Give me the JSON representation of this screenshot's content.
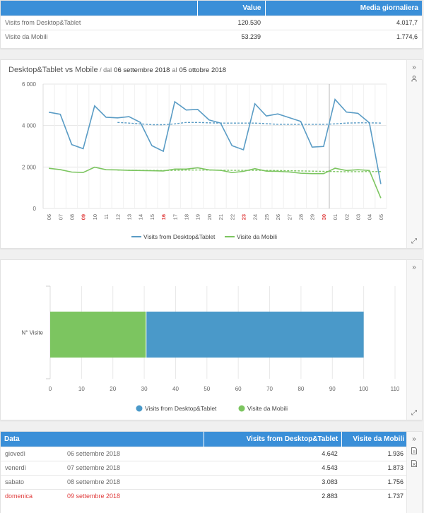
{
  "summary": {
    "headers": [
      "",
      "Value",
      "Media giornaliera"
    ],
    "rows": [
      {
        "label": "Visits from Desktop&Tablet",
        "value": "120.530",
        "avg": "4.017,7"
      },
      {
        "label": "Visite da Mobili",
        "value": "53.239",
        "avg": "1.774,6"
      }
    ]
  },
  "line_panel": {
    "title_main": "Desktop&Tablet vs Mobile",
    "title_sep": " / ",
    "title_dal": "dal",
    "title_start": "06 settembre 2018",
    "title_al": "al",
    "title_end": "05 ottobre 2018",
    "icons": [
      "chevron-right-icon",
      "person-icon",
      "expand-icon"
    ]
  },
  "bar_panel": {
    "icons": [
      "chevron-right-icon",
      "expand-icon"
    ]
  },
  "chart_data": [
    {
      "type": "line",
      "x": [
        "06",
        "07",
        "08",
        "09",
        "10",
        "11",
        "12",
        "13",
        "14",
        "15",
        "16",
        "17",
        "18",
        "19",
        "20",
        "21",
        "22",
        "23",
        "24",
        "25",
        "26",
        "27",
        "28",
        "29",
        "30",
        "01",
        "02",
        "03",
        "04",
        "05"
      ],
      "x_highlight": [
        "09",
        "16",
        "23",
        "30"
      ],
      "series": [
        {
          "name": "Visits from Desktop&Tablet",
          "color": "#5a9cc5",
          "values": [
            4642,
            4543,
            3083,
            2883,
            4950,
            4400,
            4370,
            4430,
            4150,
            3030,
            2760,
            5150,
            4750,
            4780,
            4270,
            4120,
            3030,
            2830,
            5050,
            4460,
            4560,
            4380,
            4200,
            2960,
            2990,
            5260,
            4650,
            4590,
            4130,
            1180
          ]
        },
        {
          "name": "Visite da Mobili",
          "color": "#7cc560",
          "values": [
            1936,
            1873,
            1756,
            1737,
            1990,
            1870,
            1860,
            1840,
            1830,
            1820,
            1810,
            1900,
            1900,
            1960,
            1860,
            1840,
            1730,
            1790,
            1920,
            1800,
            1790,
            1760,
            1700,
            1680,
            1680,
            1940,
            1830,
            1870,
            1830,
            500
          ]
        }
      ],
      "trend": [
        {
          "series": "Visits from Desktop&Tablet",
          "from_index": 6,
          "values": [
            4150,
            4120,
            4080,
            4040,
            4040,
            4080,
            4150,
            4150,
            4130,
            4120,
            4120,
            4120,
            4120,
            4090,
            4060,
            4060,
            4060,
            4060,
            4060,
            4080,
            4120,
            4130,
            4130,
            4120
          ]
        },
        {
          "series": "Visite da Mobili",
          "from_index": 6,
          "values": [
            1850,
            1845,
            1840,
            1835,
            1830,
            1840,
            1850,
            1855,
            1850,
            1845,
            1840,
            1840,
            1840,
            1835,
            1830,
            1820,
            1810,
            1800,
            1790,
            1780,
            1770,
            1775,
            1780,
            1780
          ]
        }
      ],
      "ylim": [
        0,
        6000
      ],
      "yticks": [
        "0",
        "2 000",
        "4 000",
        "6 000"
      ],
      "ytick_values": [
        0,
        2000,
        4000,
        6000
      ],
      "vertical_marker_index": 25,
      "grid": true,
      "legend": "bottom"
    },
    {
      "type": "bar",
      "orientation": "horizontal",
      "stacked": true,
      "categories": [
        "N° Visite"
      ],
      "series": [
        {
          "name": "Visite da Mobili",
          "color": "#7cc560",
          "values": [
            30.6
          ]
        },
        {
          "name": "Visits from Desktop&Tablet",
          "color": "#4a99c9",
          "values": [
            69.4
          ]
        }
      ],
      "legend_order": [
        "Visits from Desktop&Tablet",
        "Visite da Mobili"
      ],
      "xlim": [
        0,
        110
      ],
      "xticks": [
        "0",
        "10",
        "20",
        "30",
        "40",
        "50",
        "60",
        "70",
        "80",
        "90",
        "100",
        "110"
      ],
      "grid": true,
      "legend": "bottom"
    }
  ],
  "daily": {
    "headers": [
      "Data",
      "Visits from Desktop&Tablet",
      "Visite da Mobili"
    ],
    "rows": [
      {
        "day": "giovedì",
        "date": "06 settembre 2018",
        "desktop": "4.642",
        "mobile": "1.936",
        "weekend": false
      },
      {
        "day": "venerdì",
        "date": "07 settembre 2018",
        "desktop": "4.543",
        "mobile": "1.873",
        "weekend": false
      },
      {
        "day": "sabato",
        "date": "08 settembre 2018",
        "desktop": "3.083",
        "mobile": "1.756",
        "weekend": false
      },
      {
        "day": "domenica",
        "date": "09 settembre 2018",
        "desktop": "2.883",
        "mobile": "1.737",
        "weekend": true
      }
    ],
    "icons": [
      "chevron-right-icon",
      "pdf-icon",
      "excel-icon"
    ]
  }
}
